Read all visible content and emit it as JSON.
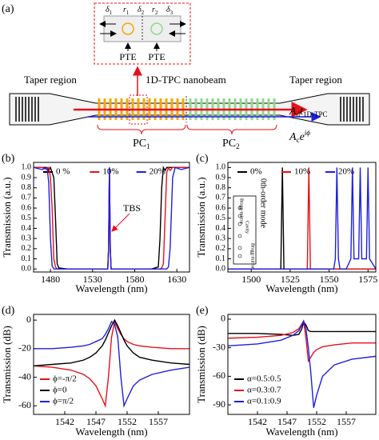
{
  "diagram": {
    "panel_label": "(a)",
    "inset_labels": [
      {
        "base": "δ",
        "sub": "1"
      },
      {
        "base": "r",
        "sub": "1"
      },
      {
        "base": "δ",
        "sub": "2"
      },
      {
        "base": "r",
        "sub": "2"
      },
      {
        "base": "δ",
        "sub": "3"
      }
    ],
    "pte": [
      "PTE",
      "PTE"
    ],
    "nanobeam": "1D-TPC nanobeam",
    "taper": [
      "Taper region",
      "Taper region"
    ],
    "pc": [
      {
        "base": "PC",
        "sub": "1"
      },
      {
        "base": "PC",
        "sub": "2"
      }
    ],
    "output_through": {
      "a": "A",
      "a_sub": "d",
      "t": "t",
      "t_sub": "1D-TPC"
    },
    "output_cross": {
      "a": "A",
      "a_sub": "c",
      "e": "e",
      "sup": "iϕ"
    }
  },
  "chart_data": [
    {
      "type": "line",
      "panel_label": "(b)",
      "x_label": "Wavelength (nm)",
      "y_label": "Transmission (a.u.)",
      "x": [
        1460,
        1470,
        1476,
        1478,
        1480,
        1482,
        1484,
        1486,
        1488,
        1490,
        1500,
        1540,
        1548,
        1549,
        1550,
        1551,
        1552,
        1560,
        1600,
        1608,
        1610,
        1612,
        1614,
        1616,
        1618,
        1620,
        1622,
        1625,
        1628,
        1635,
        1645
      ],
      "series": [
        {
          "name": "0 %",
          "color": "#000000",
          "values": [
            1,
            1,
            1,
            0.97,
            1,
            0.95,
            0.9,
            0.5,
            0.05,
            0.01,
            0,
            0,
            0,
            0.2,
            1,
            0.2,
            0,
            0,
            0,
            0.02,
            0.3,
            0.8,
            1,
            0.97,
            1,
            1,
            1,
            1,
            1,
            1,
            1
          ]
        },
        {
          "name": "10%",
          "color": "#e8101a",
          "values": [
            1,
            1,
            0.98,
            1,
            0.9,
            0.6,
            0.1,
            0.02,
            0,
            0,
            0,
            0,
            0,
            0.2,
            1,
            0.2,
            0,
            0,
            0,
            0,
            0,
            0.01,
            0.05,
            0.5,
            0.95,
            1,
            0.97,
            1,
            1,
            1,
            1
          ]
        },
        {
          "name": "20%",
          "color": "#1f1fe0",
          "values": [
            1,
            0.98,
            1,
            0.85,
            0.3,
            0.03,
            0,
            0,
            0,
            0,
            0,
            0,
            0,
            0.2,
            1,
            0.2,
            0,
            0,
            0,
            0,
            0,
            0,
            0,
            0,
            0,
            0.02,
            0.2,
            0.9,
            1,
            0.98,
            1
          ]
        }
      ],
      "xlim": [
        1460,
        1645
      ],
      "xticks": [
        1480,
        1530,
        1580,
        1630
      ],
      "ylim": [
        -0.03,
        1.05
      ],
      "yticks": [
        {
          "value": 0,
          "label": "0.0"
        },
        0.1,
        0.2,
        0.3,
        0.4,
        0.5,
        0.6,
        0.7,
        0.8,
        0.9,
        {
          "value": 1,
          "label": "1.0"
        }
      ],
      "legend": "upper center",
      "annotations": [
        "TBS"
      ]
    },
    {
      "type": "line",
      "panel_label": "(c)",
      "x_label": "Wavelength (nm)",
      "y_label": "Transmission (a.u.)",
      "x": [
        1485,
        1519,
        1520,
        1521,
        1536,
        1537,
        1538,
        1553,
        1554,
        1555,
        1556,
        1557,
        1559,
        1560,
        1561,
        1564,
        1565,
        1566,
        1569,
        1570,
        1571,
        1574,
        1575,
        1576,
        1580
      ],
      "series": [
        {
          "name": "0%",
          "color": "#000000",
          "values": [
            0,
            0,
            1,
            0,
            0,
            0,
            0,
            0,
            0,
            0,
            0,
            0,
            0,
            0,
            0,
            0,
            0,
            0,
            0,
            0,
            0,
            0,
            0,
            0,
            0
          ]
        },
        {
          "name": "10%",
          "color": "#e8101a",
          "values": [
            0,
            0,
            0,
            0,
            0,
            1,
            0,
            0,
            0,
            0,
            0,
            0,
            0,
            0,
            0,
            0,
            0,
            0,
            0,
            0,
            0,
            0,
            0,
            0,
            0
          ]
        },
        {
          "name": "20%",
          "color": "#1f1fe0",
          "values": [
            0,
            0,
            0,
            0,
            0,
            0,
            0,
            0,
            0.1,
            1,
            0.1,
            0,
            0,
            0,
            0,
            0.1,
            1,
            0.1,
            0.1,
            1,
            0.1,
            0.1,
            1,
            0.1,
            0
          ]
        }
      ],
      "xlim": [
        1485,
        1580
      ],
      "xticks": [
        1500,
        1525,
        1550,
        1575
      ],
      "ylim": [
        -0.03,
        1.05
      ],
      "yticks": [
        {
          "value": 0,
          "label": "0.0"
        },
        0.1,
        0.2,
        0.3,
        0.4,
        0.5,
        0.6,
        0.7,
        0.8,
        0.9,
        {
          "value": 1,
          "label": "1.0"
        }
      ],
      "legend": "upper center",
      "annotations": [
        "0th-order mode",
        "Bragg-mirror",
        "Cavity",
        "Bragg-mirror"
      ]
    },
    {
      "type": "line",
      "panel_label": "(d)",
      "x_label": "Wavelength (nm)",
      "y_label": "Transmission (dB)",
      "x": [
        1537,
        1540,
        1543,
        1545,
        1546,
        1547,
        1548,
        1548.5,
        1549,
        1549.5,
        1550,
        1550.5,
        1551,
        1551.5,
        1552,
        1553,
        1554,
        1556,
        1559,
        1562
      ],
      "series": [
        {
          "name": "ϕ=-π/2",
          "color": "#e8101a",
          "values": [
            -32,
            -33,
            -35,
            -38,
            -41,
            -46,
            -55,
            -60,
            -40,
            -12,
            -1,
            -6,
            -10,
            -13,
            -15,
            -17,
            -18,
            -19,
            -20,
            -20
          ]
        },
        {
          "name": "ϕ=0",
          "color": "#000000",
          "values": [
            -32,
            -31,
            -30,
            -28,
            -26,
            -23,
            -18,
            -14,
            -9,
            -4,
            0,
            -4,
            -9,
            -14,
            -18,
            -23,
            -26,
            -28,
            -30,
            -31
          ]
        },
        {
          "name": "ϕ=π/2",
          "color": "#1f1fe0",
          "values": [
            -20,
            -20,
            -19,
            -18,
            -17,
            -15,
            -13,
            -10,
            -6,
            -1,
            -3,
            -12,
            -40,
            -60,
            -55,
            -46,
            -42,
            -38,
            -35,
            -33
          ]
        }
      ],
      "xlim": [
        1537,
        1562
      ],
      "xticks": [
        1542,
        1547,
        1552,
        1557
      ],
      "ylim": [
        -66,
        4
      ],
      "yticks": [
        0,
        -20,
        -40,
        -60
      ],
      "legend": "lower left"
    },
    {
      "type": "line",
      "panel_label": "(e)",
      "x_label": "Wavelength (nm)",
      "y_label": "Transmission (dB)",
      "x": [
        1537,
        1542,
        1546,
        1548,
        1549,
        1549.5,
        1549.8,
        1550.2,
        1550.6,
        1551,
        1551.5,
        1552,
        1553,
        1555,
        1558,
        1562
      ],
      "series": [
        {
          "name": "α=0.5:0.5",
          "color": "#000000",
          "values": [
            -15,
            -15,
            -16,
            -17,
            -16,
            -10,
            -3,
            -6,
            -12,
            -13,
            -13,
            -13,
            -13,
            -13,
            -13,
            -13
          ]
        },
        {
          "name": "α=0.3:0.7",
          "color": "#e8101a",
          "values": [
            -20,
            -19,
            -17,
            -14,
            -10,
            -5,
            -2,
            -20,
            -44,
            -40,
            -35,
            -32,
            -29,
            -27,
            -25,
            -25
          ]
        },
        {
          "name": "α=0.1:0.9",
          "color": "#1f1fe0",
          "values": [
            -28,
            -26,
            -22,
            -17,
            -12,
            -6,
            -2,
            -10,
            -30,
            -55,
            -93,
            -80,
            -60,
            -48,
            -42,
            -39
          ]
        }
      ],
      "xlim": [
        1537,
        1562
      ],
      "xticks": [
        1542,
        1547,
        1552,
        1557
      ],
      "ylim": [
        -100,
        5
      ],
      "yticks": [
        0,
        -30,
        -60,
        -90
      ],
      "legend": "lower left"
    }
  ]
}
